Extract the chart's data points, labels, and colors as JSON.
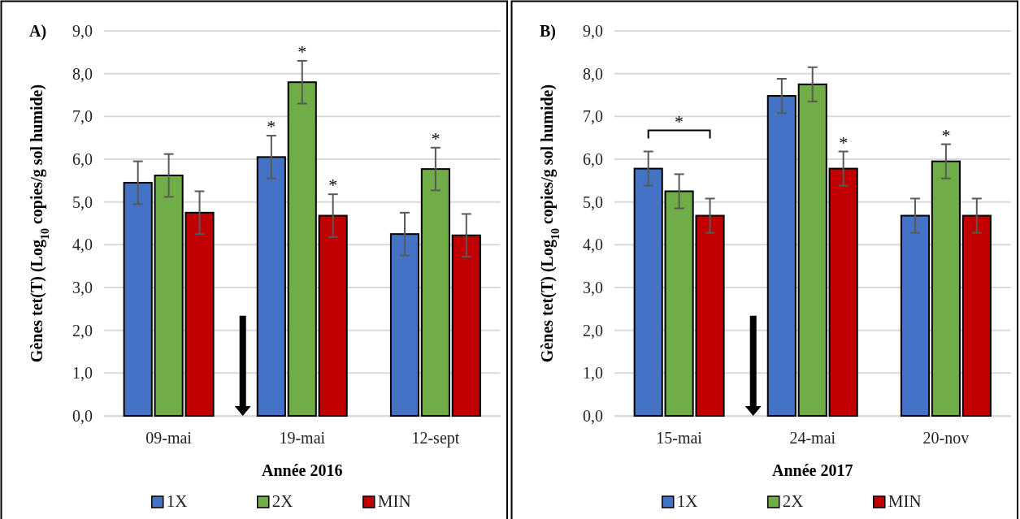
{
  "chart_data": [
    {
      "type": "bar",
      "title": "A)",
      "xlabel": "Année 2016",
      "ylabel": "Gènes tet(T) (Log$_{10}$ copies/g sol humide)",
      "categories": [
        "09-mai",
        "19-mai",
        "12-sept"
      ],
      "series": [
        {
          "name": "1X",
          "color": "#4472c4",
          "values": [
            5.45,
            6.05,
            4.25
          ],
          "errors": [
            0.5,
            0.5,
            0.5
          ]
        },
        {
          "name": "2X",
          "color": "#70ad47",
          "values": [
            5.62,
            7.8,
            5.77
          ],
          "errors": [
            0.5,
            0.5,
            0.5
          ]
        },
        {
          "name": "MIN",
          "color": "#c00000",
          "values": [
            4.75,
            4.68,
            4.22
          ],
          "errors": [
            0.5,
            0.5,
            0.5
          ]
        }
      ],
      "ylim": [
        0,
        9
      ],
      "yticks": [
        {
          "value": 0,
          "label": "0,0"
        },
        {
          "value": 1,
          "label": "1,0"
        },
        {
          "value": 2,
          "label": "2,0"
        },
        {
          "value": 3,
          "label": "3,0"
        },
        {
          "value": 4,
          "label": "4,0"
        },
        {
          "value": 5,
          "label": "5,0"
        },
        {
          "value": 6,
          "label": "6,0"
        },
        {
          "value": 7,
          "label": "7,0"
        },
        {
          "value": 8,
          "label": "8,0"
        },
        {
          "value": 9,
          "label": "9,0"
        }
      ],
      "grid": "y",
      "legend": "bottom",
      "annotations": [
        "*",
        {
          "text": "*",
          "x": "19-mai",
          "y": 7.8
        },
        "*",
        {
          "text": "*",
          "x": "12-sept",
          "y": 5.77
        }
      ]
    },
    {
      "type": "bar",
      "title": "B)",
      "xlabel": "Année 2017",
      "ylabel": "Gènes tet(T) (Log$_{10}$ copies/g sol humide)",
      "categories": [
        "15-mai",
        "24-mai",
        "20-nov"
      ],
      "series": [
        {
          "name": "1X",
          "color": "#4472c4",
          "values": [
            5.78,
            7.48,
            4.68
          ],
          "errors": [
            0.4,
            0.4,
            0.4
          ]
        },
        {
          "name": "2X",
          "color": "#70ad47",
          "values": [
            5.25,
            7.75,
            5.95
          ],
          "errors": [
            0.4,
            0.4,
            0.4
          ]
        },
        {
          "name": "MIN",
          "color": "#c00000",
          "values": [
            4.68,
            5.78,
            4.68
          ],
          "errors": [
            0.4,
            0.4,
            0.4
          ]
        }
      ],
      "ylim": [
        0,
        9
      ],
      "yticks": [
        {
          "value": 0,
          "label": "0,0"
        },
        {
          "value": 1,
          "label": "1,0"
        },
        {
          "value": 2,
          "label": "2,0"
        },
        {
          "value": 3,
          "label": "3,0"
        },
        {
          "value": 4,
          "label": "4,0"
        },
        {
          "value": 5,
          "label": "5,0"
        },
        {
          "value": 6,
          "label": "6,0"
        },
        {
          "value": 7,
          "label": "7,0"
        },
        {
          "value": 8,
          "label": "8,0"
        },
        {
          "value": 9,
          "label": "9,0"
        }
      ],
      "grid": "y",
      "legend": "bottom",
      "annotations": [
        "*",
        "*",
        {
          "text": "*",
          "x": "20-nov",
          "y": 5.95
        }
      ]
    }
  ]
}
